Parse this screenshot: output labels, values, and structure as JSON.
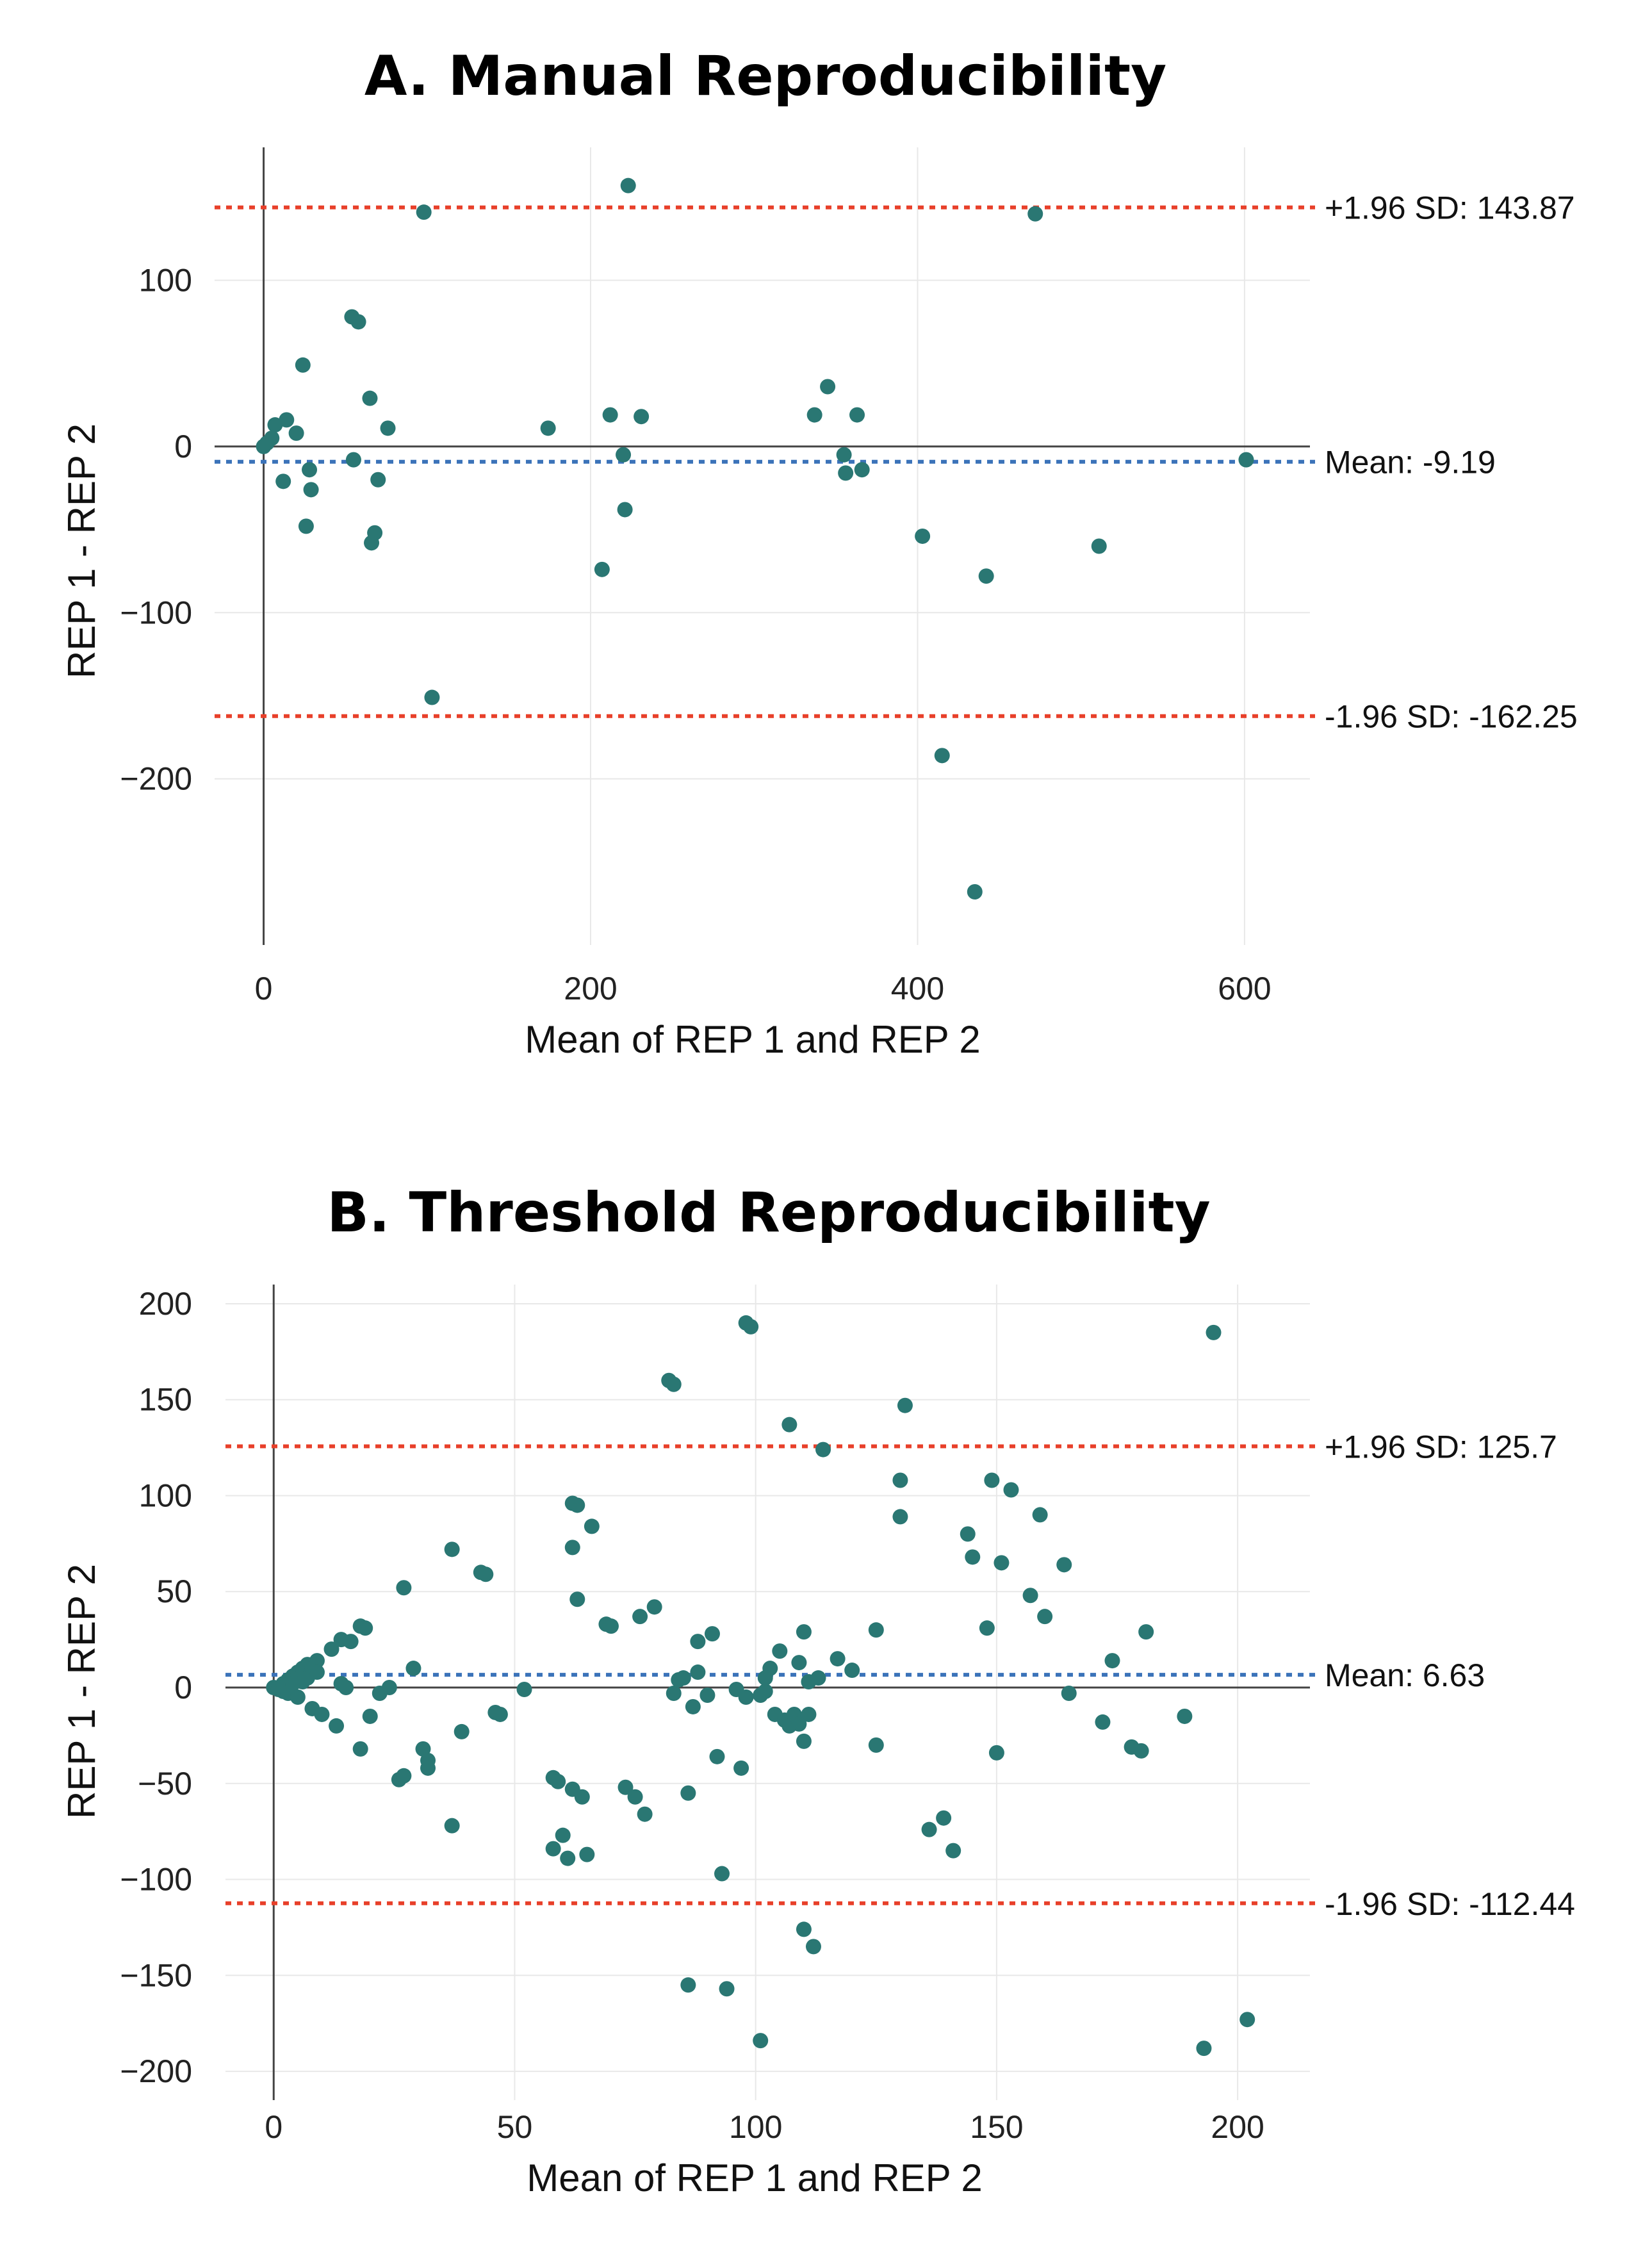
{
  "colors": {
    "point": "#2a7773",
    "sd_line": "#e8402a",
    "mean_line": "#3b73b9"
  },
  "chart_data": [
    {
      "type": "scatter",
      "title": "A. Manual Reproducibility",
      "xlabel": "Mean of REP 1 and REP 2",
      "ylabel": "REP 1 - REP 2",
      "xlim": [
        -30,
        640
      ],
      "ylim": [
        -300,
        180
      ],
      "xticks": [
        0,
        200,
        400,
        600
      ],
      "yticks": [
        -200,
        -100,
        0,
        100
      ],
      "xtick_labels": [
        "0",
        "200",
        "400",
        "600"
      ],
      "ytick_labels": [
        "−200",
        "−100",
        "0",
        "100"
      ],
      "grid": true,
      "reference_lines": [
        {
          "kind": "upper",
          "value": 143.87,
          "label": "+1.96 SD: 143.87"
        },
        {
          "kind": "mean",
          "value": -9.19,
          "label": "Mean: -9.19"
        },
        {
          "kind": "lower",
          "value": -162.25,
          "label": "-1.96 SD: -162.25"
        }
      ],
      "points": [
        [
          0,
          0
        ],
        [
          2,
          2
        ],
        [
          5,
          5
        ],
        [
          7,
          13
        ],
        [
          14,
          16
        ],
        [
          20,
          8
        ],
        [
          24,
          49
        ],
        [
          12,
          -21
        ],
        [
          26,
          -48
        ],
        [
          28,
          -14
        ],
        [
          29,
          -26
        ],
        [
          54,
          78
        ],
        [
          58,
          75
        ],
        [
          55,
          -8
        ],
        [
          65,
          29
        ],
        [
          66,
          -58
        ],
        [
          68,
          -52
        ],
        [
          70,
          -20
        ],
        [
          76,
          11
        ],
        [
          98,
          141
        ],
        [
          103,
          -151
        ],
        [
          174,
          11
        ],
        [
          207,
          -74
        ],
        [
          212,
          19
        ],
        [
          220,
          -5
        ],
        [
          221,
          -38
        ],
        [
          223,
          157
        ],
        [
          231,
          18
        ],
        [
          337,
          19
        ],
        [
          345,
          36
        ],
        [
          355,
          -5
        ],
        [
          356,
          -16
        ],
        [
          363,
          19
        ],
        [
          366,
          -14
        ],
        [
          403,
          -54
        ],
        [
          415,
          -186
        ],
        [
          435,
          -268
        ],
        [
          442,
          -78
        ],
        [
          472,
          140
        ],
        [
          511,
          -60
        ],
        [
          601,
          -8
        ]
      ]
    },
    {
      "type": "scatter",
      "title": "B. Threshold Reproducibility",
      "xlabel": "Mean of REP 1 and REP 2",
      "ylabel": "REP 1 - REP 2",
      "xlim": [
        -10,
        215
      ],
      "ylim": [
        -215,
        210
      ],
      "xticks": [
        0,
        50,
        100,
        150,
        200
      ],
      "yticks": [
        -200,
        -150,
        -100,
        -50,
        0,
        50,
        100,
        150,
        200
      ],
      "xtick_labels": [
        "0",
        "50",
        "100",
        "150",
        "200"
      ],
      "ytick_labels": [
        "−200",
        "−150",
        "−100",
        "−50",
        "0",
        "50",
        "100",
        "150",
        "200"
      ],
      "grid": true,
      "reference_lines": [
        {
          "kind": "upper",
          "value": 125.7,
          "label": "+1.96 SD: 125.7"
        },
        {
          "kind": "mean",
          "value": 6.63,
          "label": "Mean: 6.63"
        },
        {
          "kind": "lower",
          "value": -112.44,
          "label": "-1.96 SD: -112.44"
        }
      ],
      "points": [
        [
          0,
          0
        ],
        [
          1,
          -1
        ],
        [
          2,
          2
        ],
        [
          2,
          -2
        ],
        [
          3,
          4
        ],
        [
          3,
          -3
        ],
        [
          4,
          6
        ],
        [
          4,
          2
        ],
        [
          5,
          8
        ],
        [
          5,
          -5
        ],
        [
          6,
          7
        ],
        [
          6,
          10
        ],
        [
          6,
          3
        ],
        [
          7,
          12
        ],
        [
          7,
          5
        ],
        [
          8,
          10
        ],
        [
          8,
          -11
        ],
        [
          9,
          14
        ],
        [
          9,
          8
        ],
        [
          10,
          -14
        ],
        [
          12,
          20
        ],
        [
          13,
          -20
        ],
        [
          14,
          25
        ],
        [
          14,
          2
        ],
        [
          15,
          0
        ],
        [
          16,
          24
        ],
        [
          18,
          32
        ],
        [
          19,
          31
        ],
        [
          18,
          -32
        ],
        [
          20,
          -15
        ],
        [
          22,
          -3
        ],
        [
          24,
          0
        ],
        [
          26,
          -48
        ],
        [
          27,
          52
        ],
        [
          27,
          -46
        ],
        [
          29,
          10
        ],
        [
          31,
          -32
        ],
        [
          32,
          -38
        ],
        [
          32,
          -42
        ],
        [
          37,
          72
        ],
        [
          37,
          -72
        ],
        [
          39,
          -23
        ],
        [
          43,
          60
        ],
        [
          44,
          59
        ],
        [
          46,
          -13
        ],
        [
          47,
          -14
        ],
        [
          52,
          -1
        ],
        [
          58,
          -84
        ],
        [
          58,
          -47
        ],
        [
          59,
          -49
        ],
        [
          60,
          -77
        ],
        [
          61,
          -89
        ],
        [
          62,
          -53
        ],
        [
          62,
          73
        ],
        [
          62,
          96
        ],
        [
          63,
          95
        ],
        [
          63,
          46
        ],
        [
          64,
          -57
        ],
        [
          65,
          -87
        ],
        [
          66,
          84
        ],
        [
          69,
          33
        ],
        [
          70,
          32
        ],
        [
          73,
          -52
        ],
        [
          75,
          -57
        ],
        [
          76,
          37
        ],
        [
          77,
          -66
        ],
        [
          79,
          42
        ],
        [
          82,
          160
        ],
        [
          83,
          158
        ],
        [
          83,
          -3
        ],
        [
          84,
          4
        ],
        [
          85,
          5
        ],
        [
          86,
          -55
        ],
        [
          86,
          -155
        ],
        [
          87,
          -10
        ],
        [
          88,
          8
        ],
        [
          88,
          24
        ],
        [
          90,
          -4
        ],
        [
          91,
          28
        ],
        [
          92,
          -36
        ],
        [
          93,
          -97
        ],
        [
          94,
          -157
        ],
        [
          96,
          -1
        ],
        [
          97,
          -42
        ],
        [
          98,
          -5
        ],
        [
          98,
          190
        ],
        [
          99,
          188
        ],
        [
          101,
          -184
        ],
        [
          101,
          -4
        ],
        [
          102,
          -2
        ],
        [
          102,
          5
        ],
        [
          103,
          10
        ],
        [
          104,
          -14
        ],
        [
          105,
          19
        ],
        [
          106,
          -17
        ],
        [
          107,
          -20
        ],
        [
          107,
          137
        ],
        [
          108,
          -14
        ],
        [
          109,
          -19
        ],
        [
          109,
          13
        ],
        [
          110,
          -28
        ],
        [
          110,
          -126
        ],
        [
          110,
          29
        ],
        [
          111,
          3
        ],
        [
          111,
          -14
        ],
        [
          112,
          -135
        ],
        [
          113,
          5
        ],
        [
          114,
          124
        ],
        [
          117,
          15
        ],
        [
          120,
          9
        ],
        [
          125,
          30
        ],
        [
          125,
          -30
        ],
        [
          130,
          108
        ],
        [
          130,
          89
        ],
        [
          131,
          147
        ],
        [
          136,
          -74
        ],
        [
          139,
          -68
        ],
        [
          141,
          -85
        ],
        [
          144,
          80
        ],
        [
          145,
          68
        ],
        [
          148,
          31
        ],
        [
          149,
          108
        ],
        [
          150,
          -34
        ],
        [
          151,
          65
        ],
        [
          153,
          103
        ],
        [
          157,
          48
        ],
        [
          159,
          90
        ],
        [
          160,
          37
        ],
        [
          164,
          64
        ],
        [
          165,
          -3
        ],
        [
          172,
          -18
        ],
        [
          174,
          14
        ],
        [
          178,
          -31
        ],
        [
          180,
          -33
        ],
        [
          181,
          29
        ],
        [
          189,
          -15
        ],
        [
          193,
          -188
        ],
        [
          195,
          185
        ],
        [
          202,
          -173
        ]
      ]
    }
  ]
}
